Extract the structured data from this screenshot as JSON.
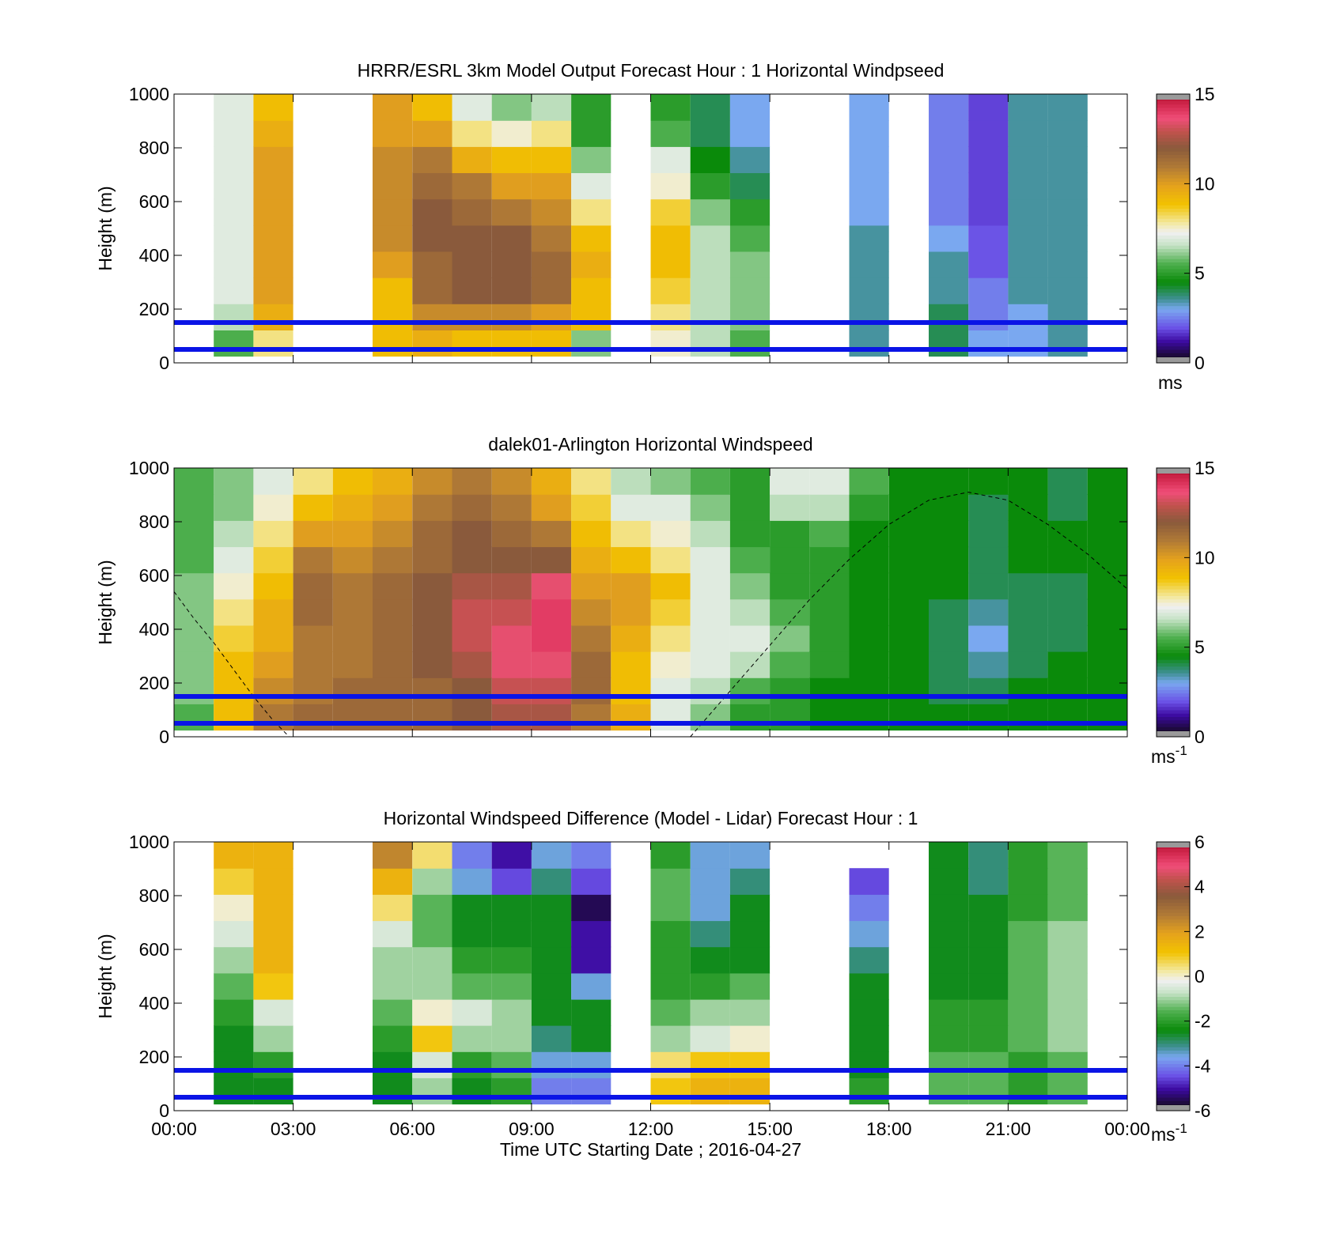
{
  "figure": {
    "x_axis": {
      "ticks": [
        "00:00",
        "03:00",
        "06:00",
        "09:00",
        "12:00",
        "15:00",
        "18:00",
        "21:00",
        "00:00"
      ],
      "label": "Time UTC  Starting Date ; 2016-04-27"
    }
  },
  "chart_data": [
    {
      "type": "heatmap",
      "title": "HRRR/ESRL 3km Model Output   Forecast Hour : 1 Horizontal Windpseed",
      "ylabel": "Height (m)",
      "ylim": [
        0,
        1000
      ],
      "yticks": [
        "0",
        "200",
        "400",
        "600",
        "800",
        "1000"
      ],
      "xlim_hours": [
        0,
        24
      ],
      "colorbar": {
        "ticks": [
          "0",
          "5",
          "10",
          "15"
        ],
        "range": [
          0,
          15
        ],
        "unit": "ms",
        "unit_sup": ""
      },
      "reference_lines_m": [
        50,
        150
      ],
      "columns": [
        {
          "t": 1.5,
          "v": [
            5.5,
            6.5,
            7.0,
            7.0,
            7.0,
            7.0,
            7.0,
            7.0,
            7.0,
            7.0
          ]
        },
        {
          "t": 2.5,
          "v": [
            8.0,
            9.5,
            10.0,
            10.0,
            10.0,
            10.0,
            10.0,
            10.0,
            9.5,
            9.0
          ]
        },
        {
          "t": 5.5,
          "v": [
            9.0,
            9.0,
            9.0,
            10.0,
            10.5,
            10.5,
            10.5,
            10.5,
            10.0,
            10.0
          ]
        },
        {
          "t": 6.5,
          "v": [
            9.5,
            10.5,
            11.5,
            11.5,
            12.0,
            12.0,
            11.5,
            11.0,
            10.0,
            9.0
          ]
        },
        {
          "t": 7.5,
          "v": [
            9.0,
            10.5,
            12.0,
            12.0,
            12.0,
            11.5,
            11.0,
            9.5,
            8.0,
            7.0
          ]
        },
        {
          "t": 8.5,
          "v": [
            9.0,
            10.5,
            12.0,
            12.0,
            12.0,
            11.0,
            10.0,
            9.0,
            7.5,
            6.0
          ]
        },
        {
          "t": 9.5,
          "v": [
            9.0,
            10.0,
            11.5,
            11.5,
            11.0,
            10.5,
            10.0,
            9.0,
            8.0,
            6.5
          ]
        },
        {
          "t": 10.5,
          "v": [
            6.0,
            9.0,
            9.0,
            9.5,
            9.0,
            8.0,
            7.0,
            6.0,
            5.0,
            5.0
          ]
        },
        {
          "t": 12.5,
          "v": [
            7.5,
            8.0,
            8.5,
            9.0,
            9.0,
            8.5,
            7.5,
            7.0,
            5.5,
            5.0
          ]
        },
        {
          "t": 13.5,
          "v": [
            6.5,
            6.5,
            6.5,
            6.5,
            6.5,
            6.0,
            5.0,
            4.5,
            4.0,
            4.0
          ]
        },
        {
          "t": 14.5,
          "v": [
            5.5,
            6.0,
            6.0,
            6.0,
            5.5,
            5.0,
            4.0,
            3.5,
            3.0,
            3.0
          ]
        },
        {
          "t": 17.5,
          "v": [
            3.5,
            3.5,
            3.5,
            3.5,
            3.5,
            3.0,
            3.0,
            3.0,
            3.0,
            3.0
          ]
        },
        {
          "t": 19.5,
          "v": [
            4.0,
            4.0,
            3.5,
            3.5,
            3.0,
            2.5,
            2.5,
            2.5,
            2.5,
            2.5
          ]
        },
        {
          "t": 20.5,
          "v": [
            3.0,
            2.5,
            2.5,
            2.0,
            2.0,
            1.8,
            1.8,
            1.8,
            1.8,
            1.8
          ]
        },
        {
          "t": 21.5,
          "v": [
            3.0,
            3.0,
            3.5,
            3.5,
            3.5,
            3.5,
            3.5,
            3.5,
            3.5,
            3.5
          ]
        },
        {
          "t": 22.5,
          "v": [
            3.5,
            3.5,
            3.5,
            3.5,
            3.5,
            3.5,
            3.5,
            3.5,
            3.5,
            3.5
          ]
        }
      ]
    },
    {
      "type": "heatmap",
      "title": "dalek01-Arlington  Horizontal Windspeed",
      "ylabel": "Height (m)",
      "ylim": [
        0,
        1000
      ],
      "yticks": [
        "0",
        "200",
        "400",
        "600",
        "800",
        "1000"
      ],
      "xlim_hours": [
        0,
        24
      ],
      "colorbar": {
        "ticks": [
          "0",
          "5",
          "10",
          "15"
        ],
        "range": [
          0,
          15
        ],
        "unit": "ms",
        "unit_sup": "-1"
      },
      "reference_lines_m": [
        50,
        150
      ],
      "columns": [
        {
          "t": 0.5,
          "v": [
            5.5,
            6.0,
            6.0,
            6.0,
            6.0,
            6.0,
            5.5,
            5.5,
            5.5,
            5.5
          ]
        },
        {
          "t": 1.5,
          "v": [
            9.0,
            9.0,
            9.0,
            8.5,
            8.0,
            7.5,
            7.0,
            6.5,
            6.0,
            6.0
          ]
        },
        {
          "t": 2.5,
          "v": [
            11.0,
            10.5,
            10.0,
            9.5,
            9.5,
            9.0,
            8.5,
            8.0,
            7.5,
            7.0
          ]
        },
        {
          "t": 3.5,
          "v": [
            11.5,
            11.0,
            11.0,
            11.0,
            11.5,
            11.5,
            11.0,
            10.0,
            9.0,
            8.0
          ]
        },
        {
          "t": 4.5,
          "v": [
            11.5,
            11.5,
            11.0,
            11.0,
            11.0,
            11.0,
            10.5,
            10.0,
            9.5,
            9.0
          ]
        },
        {
          "t": 5.5,
          "v": [
            11.5,
            11.5,
            11.5,
            11.5,
            11.5,
            11.5,
            11.0,
            10.5,
            10.0,
            9.5
          ]
        },
        {
          "t": 6.5,
          "v": [
            11.5,
            11.5,
            12.0,
            12.0,
            12.0,
            12.0,
            11.5,
            11.5,
            11.0,
            10.5
          ]
        },
        {
          "t": 7.5,
          "v": [
            12.0,
            12.0,
            12.5,
            13.0,
            13.0,
            12.5,
            12.0,
            12.0,
            11.5,
            11.0
          ]
        },
        {
          "t": 8.5,
          "v": [
            12.5,
            13.0,
            13.5,
            13.5,
            13.0,
            12.5,
            12.0,
            11.5,
            11.0,
            10.5
          ]
        },
        {
          "t": 9.5,
          "v": [
            12.5,
            13.0,
            13.5,
            14.0,
            14.0,
            13.5,
            12.0,
            11.0,
            10.0,
            9.5
          ]
        },
        {
          "t": 10.5,
          "v": [
            11.0,
            11.5,
            11.5,
            11.0,
            10.5,
            10.0,
            9.5,
            9.0,
            8.5,
            8.0
          ]
        },
        {
          "t": 11.5,
          "v": [
            9.5,
            9.0,
            9.0,
            9.5,
            10.0,
            10.0,
            9.0,
            8.0,
            7.0,
            6.5
          ]
        },
        {
          "t": 12.5,
          "v": [
            7.0,
            7.0,
            7.5,
            8.0,
            8.5,
            9.0,
            8.0,
            7.5,
            7.0,
            6.0
          ]
        },
        {
          "t": 13.5,
          "v": [
            6.0,
            6.5,
            7.0,
            7.0,
            7.0,
            7.0,
            7.0,
            6.5,
            6.0,
            5.5
          ]
        },
        {
          "t": 14.5,
          "v": [
            5.0,
            5.5,
            6.5,
            7.0,
            6.5,
            6.0,
            5.5,
            5.0,
            5.0,
            5.0
          ]
        },
        {
          "t": 15.5,
          "v": [
            5.0,
            5.0,
            5.5,
            6.0,
            5.5,
            5.0,
            5.0,
            5.0,
            6.5,
            7.0
          ]
        },
        {
          "t": 16.5,
          "v": [
            4.5,
            4.5,
            5.0,
            5.0,
            5.0,
            5.0,
            5.0,
            5.5,
            6.5,
            7.0
          ]
        },
        {
          "t": 17.5,
          "v": [
            4.5,
            4.5,
            4.5,
            4.5,
            4.5,
            4.5,
            4.5,
            4.5,
            5.0,
            5.5
          ]
        },
        {
          "t": 18.5,
          "v": [
            4.5,
            4.5,
            4.5,
            4.5,
            4.5,
            4.5,
            4.5,
            4.5,
            4.5,
            4.5
          ]
        },
        {
          "t": 19.5,
          "v": [
            4.5,
            4.0,
            4.0,
            4.0,
            4.0,
            4.5,
            4.5,
            4.5,
            4.5,
            4.5
          ]
        },
        {
          "t": 20.5,
          "v": [
            4.5,
            4.0,
            3.5,
            3.0,
            3.5,
            4.0,
            4.0,
            4.0,
            4.0,
            4.5
          ]
        },
        {
          "t": 21.5,
          "v": [
            4.5,
            4.5,
            4.0,
            4.0,
            4.0,
            4.0,
            4.5,
            4.5,
            4.5,
            4.5
          ]
        },
        {
          "t": 22.5,
          "v": [
            4.5,
            4.5,
            4.5,
            4.0,
            4.0,
            4.0,
            4.5,
            4.5,
            4.0,
            4.0
          ]
        },
        {
          "t": 23.5,
          "v": [
            4.5,
            4.5,
            4.5,
            4.5,
            4.5,
            4.5,
            4.5,
            4.5,
            4.5,
            4.5
          ]
        }
      ],
      "overlay_curve": [
        {
          "t": 0.0,
          "h": 540
        },
        {
          "t": 0.5,
          "h": 440
        },
        {
          "t": 1.0,
          "h": 350
        },
        {
          "t": 1.5,
          "h": 250
        },
        {
          "t": 2.0,
          "h": 150
        },
        {
          "t": 2.5,
          "h": 60
        },
        {
          "t": 2.9,
          "h": 0
        },
        {
          "t": 13.0,
          "h": 0
        },
        {
          "t": 14.0,
          "h": 170
        },
        {
          "t": 15.0,
          "h": 340
        },
        {
          "t": 16.0,
          "h": 510
        },
        {
          "t": 17.0,
          "h": 660
        },
        {
          "t": 18.0,
          "h": 790
        },
        {
          "t": 19.0,
          "h": 880
        },
        {
          "t": 20.0,
          "h": 910
        },
        {
          "t": 21.0,
          "h": 880
        },
        {
          "t": 22.0,
          "h": 790
        },
        {
          "t": 23.0,
          "h": 680
        },
        {
          "t": 24.0,
          "h": 550
        }
      ]
    },
    {
      "type": "heatmap",
      "title": "Horizontal Windspeed Difference (Model - Lidar) Forecast Hour : 1",
      "ylabel": "Height (m)",
      "ylim": [
        0,
        1000
      ],
      "yticks": [
        "0",
        "200",
        "400",
        "600",
        "800",
        "1000"
      ],
      "xlim_hours": [
        0,
        24
      ],
      "colorbar": {
        "ticks": [
          "-6",
          "-4",
          "-2",
          "0",
          "2",
          "4",
          "6"
        ],
        "range": [
          -6,
          6
        ],
        "unit": "ms",
        "unit_sup": "-1"
      },
      "reference_lines_m": [
        50,
        150
      ],
      "columns": [
        {
          "t": 1.5,
          "v": [
            -2.5,
            -2.5,
            -2.5,
            -2.0,
            -1.5,
            -1.0,
            -0.5,
            0.0,
            0.8,
            1.5
          ]
        },
        {
          "t": 2.5,
          "v": [
            -2.5,
            -2.0,
            -1.0,
            -0.5,
            1.0,
            1.5,
            1.5,
            1.5,
            1.5,
            1.5
          ]
        },
        {
          "t": 5.5,
          "v": [
            -2.5,
            -2.5,
            -2.0,
            -1.5,
            -1.0,
            -1.0,
            -0.5,
            0.5,
            1.5,
            2.5
          ]
        },
        {
          "t": 6.5,
          "v": [
            -1.0,
            -0.5,
            1.0,
            0.0,
            -1.0,
            -1.0,
            -1.5,
            -1.5,
            -1.0,
            0.5
          ]
        },
        {
          "t": 7.5,
          "v": [
            -2.5,
            -2.0,
            -1.0,
            -0.5,
            -1.5,
            -2.0,
            -2.5,
            -2.5,
            -3.5,
            -4.0
          ]
        },
        {
          "t": 8.5,
          "v": [
            -2.0,
            -1.5,
            -1.0,
            -1.0,
            -1.5,
            -2.0,
            -2.5,
            -2.5,
            -4.5,
            -5.0
          ]
        },
        {
          "t": 9.5,
          "v": [
            -4.0,
            -3.5,
            -3.0,
            -2.5,
            -2.5,
            -2.5,
            -2.5,
            -2.5,
            -3.0,
            -3.5
          ]
        },
        {
          "t": 10.5,
          "v": [
            -4.0,
            -3.5,
            -2.5,
            -2.5,
            -3.5,
            -5.0,
            -5.0,
            -5.5,
            -4.5,
            -4.0
          ]
        },
        {
          "t": 12.5,
          "v": [
            1.0,
            0.5,
            -1.0,
            -1.5,
            -2.0,
            -2.0,
            -2.0,
            -1.5,
            -1.5,
            -2.0
          ]
        },
        {
          "t": 13.5,
          "v": [
            1.5,
            1.0,
            -0.5,
            -1.0,
            -2.0,
            -2.5,
            -3.0,
            -3.5,
            -3.5,
            -3.5
          ]
        },
        {
          "t": 14.5,
          "v": [
            1.5,
            1.0,
            0.0,
            -1.0,
            -1.5,
            -2.5,
            -2.5,
            -2.5,
            -3.0,
            -3.5
          ]
        },
        {
          "t": 17.5,
          "v": [
            -2.0,
            -2.5,
            -2.5,
            -2.5,
            -2.5,
            -3.0,
            -3.5,
            -4.0,
            -4.5,
            null
          ]
        },
        {
          "t": 19.5,
          "v": [
            -1.5,
            -1.5,
            -2.0,
            -2.0,
            -2.5,
            -2.5,
            -2.5,
            -2.5,
            -2.5,
            -2.5
          ]
        },
        {
          "t": 20.5,
          "v": [
            -1.5,
            -1.5,
            -2.0,
            -2.0,
            -2.5,
            -2.5,
            -2.5,
            -2.5,
            -3.0,
            -3.0
          ]
        },
        {
          "t": 21.5,
          "v": [
            -2.0,
            -2.0,
            -1.5,
            -1.5,
            -1.5,
            -1.5,
            -1.5,
            -2.0,
            -2.0,
            -2.0
          ]
        },
        {
          "t": 22.5,
          "v": [
            -1.5,
            -1.5,
            -1.0,
            -1.0,
            -1.0,
            -1.0,
            -1.0,
            -1.5,
            -1.5,
            -1.5
          ]
        }
      ]
    }
  ]
}
